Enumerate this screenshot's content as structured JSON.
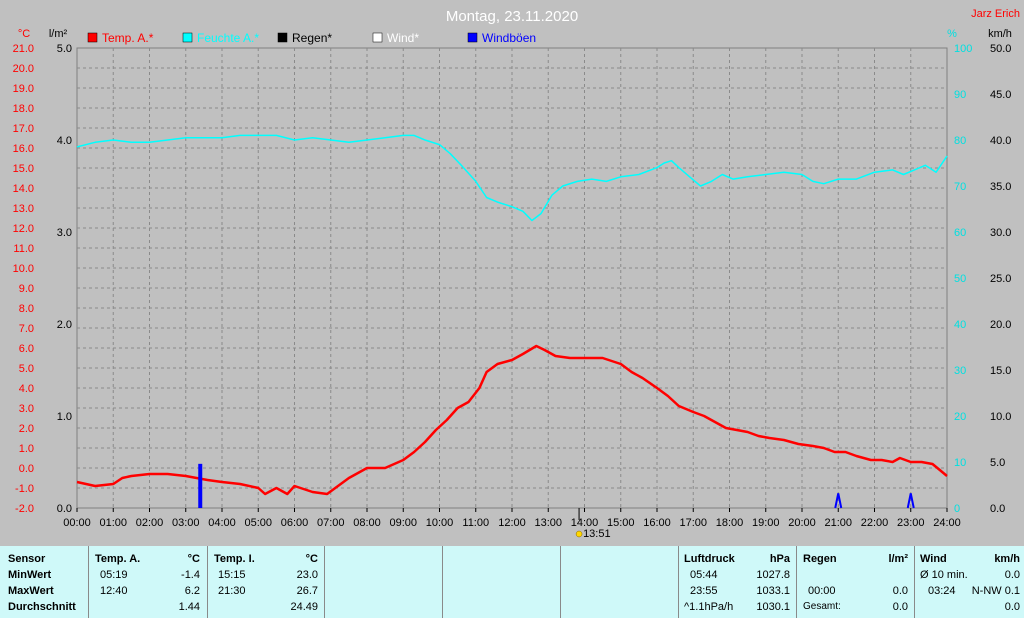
{
  "chart_data": {
    "type": "line",
    "title": "Montag, 23.11.2020",
    "author": "Jarz Erich",
    "legend": [
      "Temp. A.*",
      "Feuchte A.*",
      "Regen*",
      "Wind*",
      "Windböen"
    ],
    "legend_colors": [
      "#ff0000",
      "#00ffff",
      "#000000",
      "#ffffff",
      "#0000ff"
    ],
    "axis_units": {
      "temp": "°C",
      "rain": "l/m²",
      "humidity": "%",
      "wind": "km/h"
    },
    "x_ticks": [
      "00:00",
      "01:00",
      "02:00",
      "03:00",
      "04:00",
      "05:00",
      "06:00",
      "07:00",
      "08:00",
      "09:00",
      "10:00",
      "11:00",
      "12:00",
      "13:00",
      "14:00",
      "15:00",
      "16:00",
      "17:00",
      "18:00",
      "19:00",
      "20:00",
      "21:00",
      "22:00",
      "23:00",
      "24:00"
    ],
    "temp_ticks": [
      "21.0",
      "20.0",
      "19.0",
      "18.0",
      "17.0",
      "16.0",
      "15.0",
      "14.0",
      "13.0",
      "12.0",
      "11.0",
      "10.0",
      "9.0",
      "8.0",
      "7.0",
      "6.0",
      "5.0",
      "4.0",
      "3.0",
      "2.0",
      "1.0",
      "0.0",
      "-1.0",
      "-2.0"
    ],
    "rain_ticks": [
      "5.0",
      "4.0",
      "3.0",
      "2.0",
      "1.0",
      "0.0"
    ],
    "humidity_ticks": [
      "100",
      "90",
      "80",
      "70",
      "60",
      "50",
      "40",
      "30",
      "20",
      "10",
      "0"
    ],
    "wind_ticks": [
      "50.0",
      "45.0",
      "40.0",
      "35.0",
      "30.0",
      "25.0",
      "20.0",
      "15.0",
      "10.0",
      "5.0",
      "0.0"
    ],
    "temp_range": [
      -2,
      21
    ],
    "humidity_range": [
      0,
      100
    ],
    "wind_range": [
      0,
      50
    ],
    "marker_label": "13:51",
    "marker_hour": 13.85,
    "temperature": {
      "name": "Temp. A.*",
      "x": [
        0,
        0.5,
        1,
        1.25,
        1.5,
        2,
        2.5,
        3,
        3.3,
        3.6,
        4,
        4.5,
        5,
        5.19,
        5.5,
        5.8,
        6,
        6.5,
        6.9,
        7.2,
        7.5,
        7.8,
        8,
        8.5,
        9,
        9.3,
        9.6,
        9.9,
        10.2,
        10.5,
        10.8,
        11.1,
        11.3,
        11.6,
        12,
        12.3,
        12.67,
        12.9,
        13.2,
        13.6,
        14,
        14.5,
        15,
        15.3,
        15.6,
        16,
        16.3,
        16.6,
        17,
        17.3,
        17.6,
        17.9,
        18.2,
        18.5,
        18.8,
        19.1,
        19.5,
        19.9,
        20.3,
        20.6,
        20.9,
        21.2,
        21.5,
        21.9,
        22.2,
        22.5,
        22.7,
        23,
        23.3,
        23.6,
        23.8,
        24
      ],
      "y": [
        -0.7,
        -0.9,
        -0.8,
        -0.5,
        -0.4,
        -0.3,
        -0.3,
        -0.4,
        -0.5,
        -0.6,
        -0.7,
        -0.8,
        -1.0,
        -1.3,
        -1.0,
        -1.3,
        -0.9,
        -1.2,
        -1.3,
        -0.9,
        -0.5,
        -0.2,
        0.0,
        0.0,
        0.4,
        0.8,
        1.3,
        1.9,
        2.4,
        3.0,
        3.3,
        4.0,
        4.8,
        5.2,
        5.4,
        5.7,
        6.1,
        5.9,
        5.6,
        5.5,
        5.5,
        5.5,
        5.2,
        4.8,
        4.5,
        4.0,
        3.6,
        3.1,
        2.8,
        2.6,
        2.3,
        2.0,
        1.9,
        1.8,
        1.6,
        1.5,
        1.4,
        1.2,
        1.1,
        1.0,
        0.8,
        0.8,
        0.6,
        0.4,
        0.4,
        0.3,
        0.5,
        0.3,
        0.3,
        0.2,
        -0.1,
        -0.4
      ]
    },
    "humidity": {
      "name": "Feuchte A.*",
      "x": [
        0,
        0.5,
        1,
        1.5,
        2,
        2.5,
        3,
        3.5,
        4,
        4.5,
        5,
        5.5,
        6,
        6.5,
        7,
        7.5,
        8,
        8.5,
        9,
        9.3,
        9.6,
        10,
        10.3,
        10.6,
        11,
        11.3,
        11.6,
        12,
        12.3,
        12.55,
        12.8,
        13.1,
        13.4,
        13.8,
        14.2,
        14.6,
        15,
        15.5,
        16,
        16.2,
        16.4,
        16.6,
        16.9,
        17.2,
        17.5,
        17.8,
        18.1,
        18.5,
        19,
        19.5,
        20,
        20.3,
        20.6,
        21,
        21.5,
        22,
        22.5,
        22.8,
        23.1,
        23.4,
        23.7,
        24
      ],
      "y": [
        78.5,
        79.5,
        80.0,
        79.5,
        79.5,
        80.0,
        80.5,
        80.5,
        80.5,
        81.0,
        81.0,
        81.0,
        80.0,
        80.5,
        80.0,
        79.5,
        80.0,
        80.5,
        81.0,
        81.0,
        80.0,
        79.0,
        77.0,
        74.5,
        71.0,
        67.5,
        66.5,
        65.5,
        64.5,
        62.5,
        64.0,
        68.0,
        70.0,
        71.0,
        71.5,
        71.0,
        72.0,
        72.5,
        74.0,
        75.0,
        75.5,
        74.0,
        72.0,
        70.0,
        71.0,
        72.5,
        71.5,
        72.0,
        72.5,
        73.0,
        72.5,
        71.0,
        70.5,
        71.5,
        71.5,
        73.0,
        73.5,
        72.5,
        73.5,
        74.5,
        73.0,
        76.5
      ]
    },
    "wind_gusts": {
      "name": "Windböen",
      "x": [
        3.4,
        21.0,
        23.0
      ],
      "y": [
        4.8,
        1.6,
        1.6
      ]
    }
  },
  "table": {
    "sensor": {
      "header": "Sensor",
      "rows": [
        "MinWert",
        "MaxWert",
        "Durchschnitt"
      ]
    },
    "temp_a": {
      "header": "Temp. A.",
      "unit": "°C",
      "times": [
        "05:19",
        "12:40",
        ""
      ],
      "values": [
        "-1.4",
        "6.2",
        "1.44"
      ]
    },
    "temp_i": {
      "header": "Temp. I.",
      "unit": "°C",
      "times": [
        "15:15",
        "21:30",
        ""
      ],
      "values": [
        "23.0",
        "26.7",
        "24.49"
      ]
    },
    "pressure": {
      "header": "Luftdruck",
      "unit": "hPa",
      "times": [
        "05:44",
        "23:55",
        "^1.1hPa/h"
      ],
      "values": [
        "1027.8",
        "1033.1",
        "1030.1"
      ]
    },
    "rain": {
      "header": "Regen",
      "unit": "l/m²",
      "times": [
        "",
        "00:00",
        "Gesamt:"
      ],
      "values": [
        "",
        "0.0",
        "0.0"
      ]
    },
    "wind": {
      "header": "Wind",
      "unit": "km/h",
      "times": [
        "Ø 10 min.",
        "03:24",
        ""
      ],
      "values": [
        "0.0",
        "N-NW 0.1",
        "0.0"
      ]
    }
  }
}
